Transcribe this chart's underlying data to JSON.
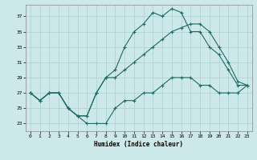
{
  "xlabel": "Humidex (Indice chaleur)",
  "bg_color": "#cde8e8",
  "grid_color": "#a8cfcf",
  "line_color": "#1e6b65",
  "xlim": [
    -0.5,
    23.5
  ],
  "ylim": [
    22.0,
    38.5
  ],
  "xticks": [
    0,
    1,
    2,
    3,
    4,
    5,
    6,
    7,
    8,
    9,
    10,
    11,
    12,
    13,
    14,
    15,
    16,
    17,
    18,
    19,
    20,
    21,
    22,
    23
  ],
  "yticks": [
    23,
    25,
    27,
    29,
    31,
    33,
    35,
    37
  ],
  "line1_x": [
    0,
    1,
    2,
    3,
    4,
    5,
    6,
    7,
    8,
    9,
    10,
    11,
    12,
    13,
    14,
    15,
    16,
    17,
    18,
    19,
    20,
    21,
    22,
    23
  ],
  "line1_y": [
    27,
    26,
    27,
    27,
    25,
    24,
    23,
    23,
    23,
    25,
    26,
    26,
    27,
    27,
    28,
    29,
    29,
    29,
    28,
    28,
    27,
    27,
    27,
    28
  ],
  "line2_x": [
    0,
    1,
    2,
    3,
    4,
    5,
    6,
    7,
    8,
    9,
    10,
    11,
    12,
    13,
    14,
    15,
    16,
    17,
    18,
    19,
    20,
    21,
    22,
    23
  ],
  "line2_y": [
    27,
    26,
    27,
    27,
    25,
    24,
    24,
    27,
    29,
    30,
    33,
    35,
    36,
    37.5,
    37,
    38,
    37.5,
    35,
    35,
    33,
    32,
    30,
    28,
    28
  ],
  "line3_x": [
    0,
    1,
    2,
    3,
    4,
    5,
    6,
    7,
    8,
    9,
    10,
    11,
    12,
    13,
    14,
    15,
    16,
    17,
    18,
    19,
    20,
    21,
    22,
    23
  ],
  "line3_y": [
    27,
    26,
    27,
    27,
    25,
    24,
    24,
    27,
    29,
    29,
    30,
    31,
    32,
    33,
    34,
    35,
    35.5,
    36,
    36,
    35,
    33,
    31,
    28.5,
    28
  ]
}
